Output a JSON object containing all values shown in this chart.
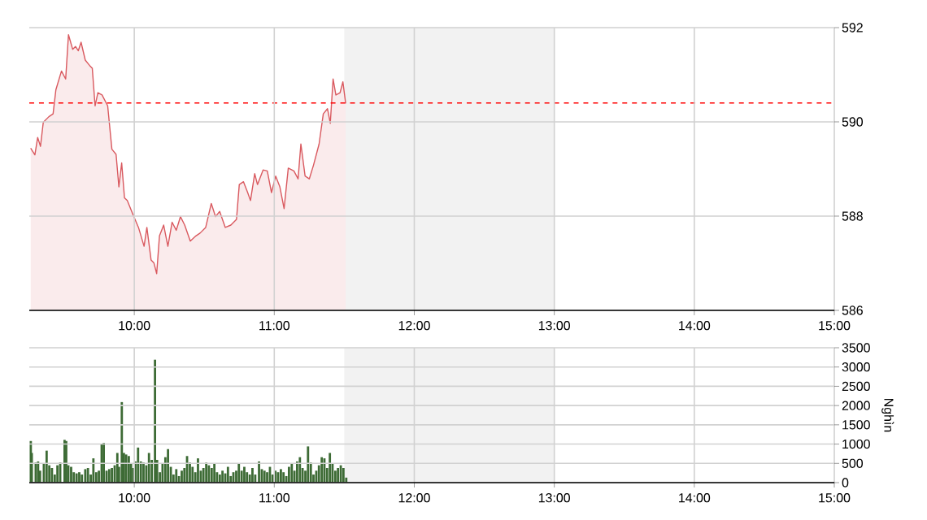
{
  "chart_data": [
    {
      "type": "area",
      "x": [
        9.26,
        9.29,
        9.31,
        9.33,
        9.35,
        9.39,
        9.42,
        9.44,
        9.48,
        9.51,
        9.53,
        9.56,
        9.58,
        9.6,
        9.62,
        9.65,
        9.68,
        9.7,
        9.72,
        9.74,
        9.77,
        9.81,
        9.84,
        9.87,
        9.89,
        9.91,
        9.93,
        9.95,
        9.99,
        10.03,
        10.07,
        10.09,
        10.12,
        10.14,
        10.16,
        10.18,
        10.21,
        10.24,
        10.27,
        10.3,
        10.33,
        10.36,
        10.4,
        10.44,
        10.47,
        10.51,
        10.55,
        10.58,
        10.61,
        10.65,
        10.69,
        10.73,
        10.75,
        10.78,
        10.81,
        10.83,
        10.86,
        10.88,
        10.92,
        10.95,
        10.98,
        11.01,
        11.04,
        11.07,
        11.1,
        11.14,
        11.17,
        11.19,
        11.22,
        11.25,
        11.28,
        11.32,
        11.35,
        11.38,
        11.4,
        11.42,
        11.44,
        11.47,
        11.49,
        11.51
      ],
      "series": [
        {
          "color": "#d9595f",
          "values": [
            589.44,
            589.3,
            589.67,
            589.48,
            589.99,
            590.11,
            590.17,
            590.68,
            591.08,
            590.91,
            591.85,
            591.54,
            591.6,
            591.51,
            591.69,
            591.31,
            591.2,
            591.14,
            590.34,
            590.62,
            590.57,
            590.34,
            589.42,
            589.31,
            588.62,
            589.13,
            588.39,
            588.33,
            588.04,
            587.76,
            587.36,
            587.76,
            587.07,
            587.01,
            586.78,
            587.58,
            587.81,
            587.36,
            587.87,
            587.7,
            587.99,
            587.81,
            587.47,
            587.58,
            587.64,
            587.76,
            588.27,
            587.99,
            588.1,
            587.76,
            587.81,
            587.93,
            588.67,
            588.73,
            588.5,
            588.33,
            588.9,
            588.67,
            588.98,
            588.96,
            588.5,
            588.85,
            588.62,
            588.16,
            589.02,
            588.96,
            588.79,
            589.53,
            588.85,
            588.79,
            589.08,
            589.53,
            590.17,
            590.28,
            589.97,
            590.91,
            590.57,
            590.62,
            590.85,
            590.39
          ]
        }
      ],
      "xlim": [
        9.25,
        15
      ],
      "xticks": [
        {
          "value": 10,
          "label": "10:00"
        },
        {
          "value": 11,
          "label": "11:00"
        },
        {
          "value": 12,
          "label": "12:00"
        },
        {
          "value": 13,
          "label": "13:00"
        },
        {
          "value": 14,
          "label": "14:00"
        },
        {
          "value": 15,
          "label": "15:00"
        }
      ],
      "ylim": [
        586,
        592
      ],
      "yticks": [
        586,
        588,
        590,
        592
      ],
      "grid": true,
      "ref_lines": [
        {
          "axis": "y",
          "value": 590.4,
          "color": "#ff0000",
          "line_style": "dashed"
        }
      ],
      "bands": [
        {
          "axis": "x",
          "from": 11.5,
          "to": 13,
          "color": "#f2f2f2"
        }
      ]
    },
    {
      "type": "bar",
      "x": [
        9.261,
        9.268,
        9.296,
        9.313,
        9.327,
        9.354,
        9.374,
        9.393,
        9.412,
        9.432,
        9.451,
        9.471,
        9.502,
        9.514,
        9.529,
        9.549,
        9.568,
        9.588,
        9.607,
        9.626,
        9.65,
        9.669,
        9.689,
        9.708,
        9.728,
        9.747,
        9.767,
        9.782,
        9.802,
        9.821,
        9.84,
        9.86,
        9.879,
        9.891,
        9.911,
        9.926,
        9.942,
        9.961,
        9.977,
        9.992,
        10.008,
        10.027,
        10.047,
        10.066,
        10.086,
        10.105,
        10.125,
        10.148,
        10.163,
        10.183,
        10.202,
        10.222,
        10.241,
        10.261,
        10.28,
        10.3,
        10.319,
        10.339,
        10.358,
        10.377,
        10.397,
        10.416,
        10.436,
        10.455,
        10.475,
        10.494,
        10.514,
        10.533,
        10.553,
        10.572,
        10.591,
        10.611,
        10.63,
        10.65,
        10.669,
        10.689,
        10.708,
        10.728,
        10.747,
        10.767,
        10.786,
        10.805,
        10.825,
        10.844,
        10.864,
        10.891,
        10.911,
        10.93,
        10.949,
        10.969,
        10.988,
        11.008,
        11.027,
        11.047,
        11.066,
        11.086,
        11.105,
        11.125,
        11.144,
        11.163,
        11.183,
        11.202,
        11.222,
        11.241,
        11.261,
        11.28,
        11.3,
        11.319,
        11.339,
        11.358,
        11.377,
        11.397,
        11.416,
        11.436,
        11.455,
        11.475,
        11.494,
        11.514
      ],
      "values": [
        1080,
        770,
        520,
        550,
        310,
        490,
        830,
        450,
        380,
        210,
        450,
        520,
        1110,
        1080,
        450,
        410,
        270,
        240,
        270,
        210,
        350,
        380,
        210,
        630,
        270,
        310,
        1000,
        1030,
        310,
        350,
        380,
        450,
        770,
        410,
        2090,
        770,
        730,
        690,
        490,
        380,
        550,
        910,
        550,
        520,
        450,
        770,
        590,
        3190,
        590,
        270,
        490,
        660,
        870,
        410,
        210,
        350,
        170,
        310,
        380,
        690,
        520,
        410,
        270,
        630,
        310,
        380,
        520,
        450,
        380,
        490,
        270,
        210,
        310,
        240,
        410,
        170,
        270,
        310,
        490,
        310,
        410,
        270,
        210,
        380,
        210,
        550,
        350,
        310,
        270,
        410,
        210,
        310,
        270,
        350,
        270,
        170,
        410,
        490,
        310,
        550,
        660,
        380,
        310,
        940,
        520,
        210,
        310,
        450,
        660,
        630,
        380,
        770,
        490,
        310,
        380,
        450,
        380,
        130
      ],
      "color": "#3d6b35",
      "ylabel": "Nghìn",
      "xlim": [
        9.25,
        15
      ],
      "xticks": [
        {
          "value": 10,
          "label": "10:00"
        },
        {
          "value": 11,
          "label": "11:00"
        },
        {
          "value": 12,
          "label": "12:00"
        },
        {
          "value": 13,
          "label": "13:00"
        },
        {
          "value": 14,
          "label": "14:00"
        },
        {
          "value": 15,
          "label": "15:00"
        }
      ],
      "ylim": [
        0,
        3500
      ],
      "yticks": [
        0,
        500,
        1000,
        1500,
        2000,
        2500,
        3000,
        3500
      ],
      "grid": true,
      "bands": [
        {
          "axis": "x",
          "from": 11.5,
          "to": 13,
          "color": "#f2f2f2"
        }
      ]
    }
  ]
}
